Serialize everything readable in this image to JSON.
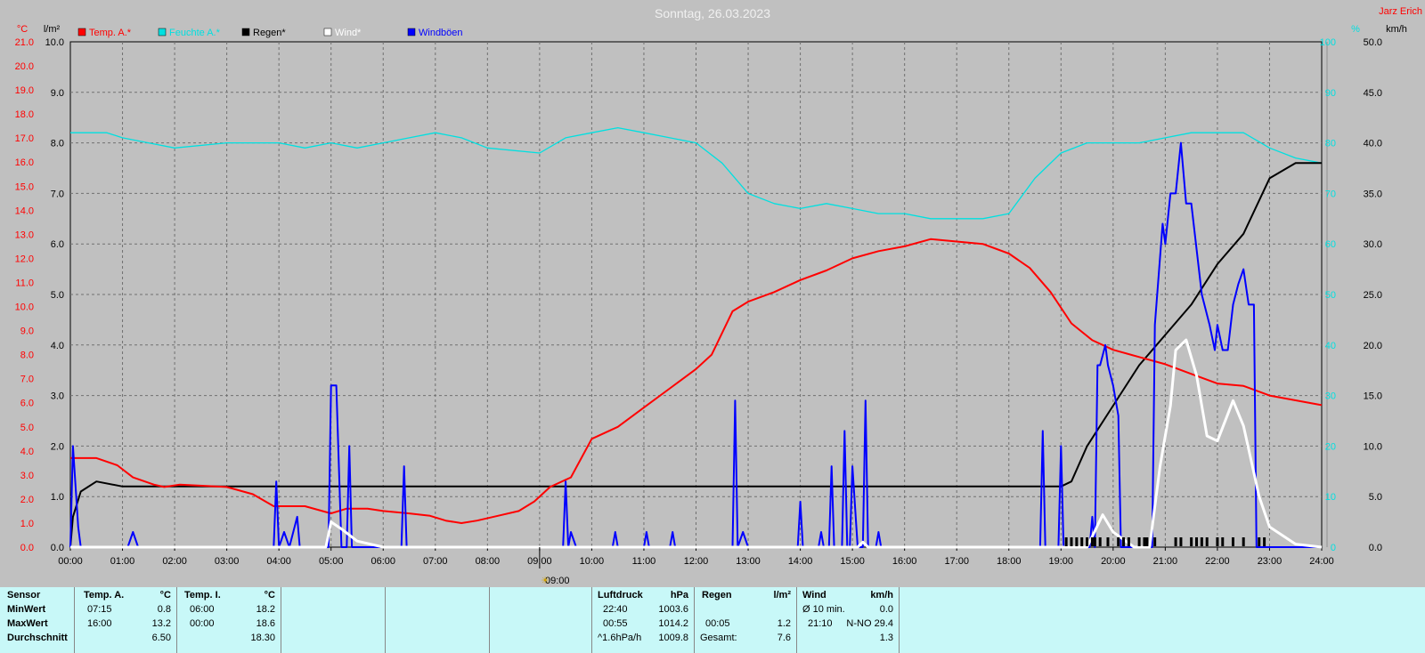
{
  "page": {
    "title": "Sonntag, 26.03.2023",
    "author": "Jarz Erich"
  },
  "axes": {
    "left_temp_unit": "°C",
    "left_rain_unit": "l/m²",
    "right_hum_unit": "%",
    "right_wind_unit": "km/h",
    "x_marker_label": "09:00"
  },
  "colors": {
    "background": "#c0c0c0",
    "temp": "#ff0000",
    "humidity": "#00e0e0",
    "rain": "#000000",
    "wind": "#ffffff",
    "gusts": "#0000ff",
    "table_bg": "#c8f8f8"
  },
  "legend": [
    {
      "label": "Temp. A.*",
      "color": "#ff0000"
    },
    {
      "label": "Feuchte A.*",
      "color": "#00e0e0"
    },
    {
      "label": "Regen*",
      "color": "#000000"
    },
    {
      "label": "Wind*",
      "color": "#ffffff"
    },
    {
      "label": "Windböen",
      "color": "#0000ff"
    }
  ],
  "chart_data": {
    "type": "line",
    "title": "Sonntag, 26.03.2023",
    "x_ticks": [
      "00:00",
      "01:00",
      "02:00",
      "03:00",
      "04:00",
      "05:00",
      "06:00",
      "07:00",
      "08:00",
      "09:00",
      "10:00",
      "11:00",
      "12:00",
      "13:00",
      "14:00",
      "15:00",
      "16:00",
      "17:00",
      "18:00",
      "19:00",
      "20:00",
      "21:00",
      "22:00",
      "23:00",
      "24:00"
    ],
    "x_range_hours": [
      0,
      24
    ],
    "temp_axis": {
      "unit": "°C",
      "range": [
        0,
        21
      ],
      "ticks": [
        "0.0",
        "1.0",
        "2.0",
        "3.0",
        "4.0",
        "5.0",
        "6.0",
        "7.0",
        "8.0",
        "9.0",
        "10.0",
        "11.0",
        "12.0",
        "13.0",
        "14.0",
        "15.0",
        "16.0",
        "17.0",
        "18.0",
        "19.0",
        "20.0",
        "21.0"
      ]
    },
    "rain_axis": {
      "unit": "l/m²",
      "range": [
        0,
        10
      ],
      "ticks": [
        "0.0",
        "1.0",
        "2.0",
        "3.0",
        "4.0",
        "5.0",
        "6.0",
        "7.0",
        "8.0",
        "9.0",
        "10.0"
      ]
    },
    "hum_axis": {
      "unit": "%",
      "range": [
        0,
        100
      ],
      "ticks": [
        "0",
        "10",
        "20",
        "30",
        "40",
        "50",
        "60",
        "70",
        "80",
        "90",
        "100"
      ]
    },
    "wind_axis": {
      "unit": "km/h",
      "range": [
        0,
        50
      ],
      "ticks": [
        "0.0",
        "5.0",
        "10.0",
        "15.0",
        "20.0",
        "25.0",
        "30.0",
        "35.0",
        "40.0",
        "45.0",
        "50.0"
      ]
    },
    "grid": true,
    "series": [
      {
        "name": "Temp. A.*",
        "axis": "temp",
        "points": [
          [
            0,
            3.7
          ],
          [
            0.5,
            3.7
          ],
          [
            0.9,
            3.4
          ],
          [
            1.2,
            2.9
          ],
          [
            1.6,
            2.6
          ],
          [
            1.8,
            2.5
          ],
          [
            2.1,
            2.6
          ],
          [
            3.0,
            2.5
          ],
          [
            3.5,
            2.2
          ],
          [
            3.9,
            1.7
          ],
          [
            4.5,
            1.7
          ],
          [
            5.0,
            1.4
          ],
          [
            5.3,
            1.6
          ],
          [
            5.7,
            1.6
          ],
          [
            6.0,
            1.5
          ],
          [
            6.5,
            1.4
          ],
          [
            6.9,
            1.3
          ],
          [
            7.2,
            1.1
          ],
          [
            7.5,
            1.0
          ],
          [
            7.8,
            1.1
          ],
          [
            8.2,
            1.3
          ],
          [
            8.6,
            1.5
          ],
          [
            8.9,
            1.9
          ],
          [
            9.2,
            2.5
          ],
          [
            9.6,
            2.9
          ],
          [
            10.0,
            4.5
          ],
          [
            10.5,
            5.0
          ],
          [
            11.0,
            5.8
          ],
          [
            11.5,
            6.6
          ],
          [
            12.0,
            7.4
          ],
          [
            12.3,
            8.0
          ],
          [
            12.7,
            9.8
          ],
          [
            13.0,
            10.2
          ],
          [
            13.5,
            10.6
          ],
          [
            14.0,
            11.1
          ],
          [
            14.5,
            11.5
          ],
          [
            15.0,
            12.0
          ],
          [
            15.5,
            12.3
          ],
          [
            16.0,
            12.5
          ],
          [
            16.5,
            12.8
          ],
          [
            17.0,
            12.7
          ],
          [
            17.5,
            12.6
          ],
          [
            18.0,
            12.2
          ],
          [
            18.4,
            11.6
          ],
          [
            18.8,
            10.6
          ],
          [
            19.2,
            9.3
          ],
          [
            19.6,
            8.6
          ],
          [
            20.0,
            8.2
          ],
          [
            20.5,
            7.9
          ],
          [
            21.0,
            7.6
          ],
          [
            21.5,
            7.2
          ],
          [
            22.0,
            6.8
          ],
          [
            22.5,
            6.7
          ],
          [
            23.0,
            6.3
          ],
          [
            23.5,
            6.1
          ],
          [
            24.0,
            5.9
          ]
        ]
      },
      {
        "name": "Feuchte A.*",
        "axis": "hum",
        "points": [
          [
            0,
            82
          ],
          [
            0.7,
            82
          ],
          [
            1.0,
            81
          ],
          [
            1.5,
            80
          ],
          [
            2.0,
            79
          ],
          [
            3.0,
            80
          ],
          [
            4.0,
            80
          ],
          [
            4.5,
            79
          ],
          [
            5.0,
            80
          ],
          [
            5.5,
            79
          ],
          [
            6.0,
            80
          ],
          [
            6.5,
            81
          ],
          [
            7.0,
            82
          ],
          [
            7.5,
            81
          ],
          [
            8.0,
            79
          ],
          [
            9.0,
            78
          ],
          [
            9.5,
            81
          ],
          [
            10.0,
            82
          ],
          [
            10.5,
            83
          ],
          [
            11.0,
            82
          ],
          [
            12.0,
            80
          ],
          [
            12.5,
            76
          ],
          [
            13.0,
            70
          ],
          [
            13.5,
            68
          ],
          [
            14.0,
            67
          ],
          [
            14.5,
            68
          ],
          [
            15.0,
            67
          ],
          [
            15.5,
            66
          ],
          [
            16.0,
            66
          ],
          [
            16.5,
            65
          ],
          [
            17.0,
            65
          ],
          [
            17.5,
            65
          ],
          [
            18.0,
            66
          ],
          [
            18.5,
            73
          ],
          [
            19.0,
            78
          ],
          [
            19.5,
            80
          ],
          [
            20.0,
            80
          ],
          [
            20.5,
            80
          ],
          [
            21.0,
            81
          ],
          [
            21.5,
            82
          ],
          [
            22.0,
            82
          ],
          [
            22.5,
            82
          ],
          [
            23.0,
            79
          ],
          [
            23.5,
            77
          ],
          [
            24.0,
            76
          ]
        ]
      },
      {
        "name": "Regen*",
        "axis": "rain",
        "points": [
          [
            0,
            0
          ],
          [
            0.05,
            0.6
          ],
          [
            0.2,
            1.1
          ],
          [
            0.5,
            1.3
          ],
          [
            1.0,
            1.2
          ],
          [
            1.5,
            1.2
          ],
          [
            3.0,
            1.2
          ],
          [
            9.0,
            1.2
          ],
          [
            15.0,
            1.2
          ],
          [
            19.0,
            1.2
          ],
          [
            19.2,
            1.3
          ],
          [
            19.5,
            2.0
          ],
          [
            20.0,
            2.8
          ],
          [
            20.5,
            3.6
          ],
          [
            21.0,
            4.2
          ],
          [
            21.5,
            4.8
          ],
          [
            22.0,
            5.6
          ],
          [
            22.5,
            6.2
          ],
          [
            23.0,
            7.3
          ],
          [
            23.5,
            7.6
          ],
          [
            24.0,
            7.6
          ]
        ]
      },
      {
        "name": "Wind*",
        "axis": "wind",
        "points": [
          [
            0,
            0
          ],
          [
            4.9,
            0
          ],
          [
            5.0,
            2.5
          ],
          [
            5.2,
            1.8
          ],
          [
            5.5,
            0.6
          ],
          [
            6.0,
            0
          ],
          [
            15.1,
            0
          ],
          [
            15.2,
            0.5
          ],
          [
            15.3,
            0
          ],
          [
            19.5,
            0
          ],
          [
            19.8,
            3.2
          ],
          [
            20.0,
            1.5
          ],
          [
            20.4,
            0
          ],
          [
            20.7,
            0
          ],
          [
            20.9,
            8.0
          ],
          [
            21.1,
            14.0
          ],
          [
            21.2,
            19.5
          ],
          [
            21.4,
            20.5
          ],
          [
            21.6,
            17.0
          ],
          [
            21.8,
            11.0
          ],
          [
            22.0,
            10.5
          ],
          [
            22.3,
            14.5
          ],
          [
            22.5,
            12.0
          ],
          [
            22.8,
            5.0
          ],
          [
            23.0,
            2.0
          ],
          [
            23.5,
            0.3
          ],
          [
            24.0,
            0
          ]
        ]
      },
      {
        "name": "Windböen",
        "axis": "wind",
        "points": [
          [
            0,
            0
          ],
          [
            0.05,
            10
          ],
          [
            0.15,
            2
          ],
          [
            0.2,
            0
          ],
          [
            1.1,
            0
          ],
          [
            1.2,
            1.5
          ],
          [
            1.3,
            0
          ],
          [
            3.9,
            0
          ],
          [
            3.95,
            6.5
          ],
          [
            4.0,
            0
          ],
          [
            4.1,
            1.5
          ],
          [
            4.2,
            0
          ],
          [
            4.35,
            3.0
          ],
          [
            4.4,
            0
          ],
          [
            4.95,
            0
          ],
          [
            5.0,
            16
          ],
          [
            5.1,
            16
          ],
          [
            5.2,
            0
          ],
          [
            5.3,
            0
          ],
          [
            5.35,
            10
          ],
          [
            5.4,
            0
          ],
          [
            6.35,
            0
          ],
          [
            6.4,
            8
          ],
          [
            6.45,
            0
          ],
          [
            9.45,
            0
          ],
          [
            9.5,
            6.5
          ],
          [
            9.55,
            0
          ],
          [
            9.6,
            1.5
          ],
          [
            9.7,
            0
          ],
          [
            10.4,
            0
          ],
          [
            10.45,
            1.5
          ],
          [
            10.5,
            0
          ],
          [
            11.0,
            0
          ],
          [
            11.05,
            1.5
          ],
          [
            11.1,
            0
          ],
          [
            11.5,
            0
          ],
          [
            11.55,
            1.5
          ],
          [
            11.6,
            0
          ],
          [
            12.7,
            0
          ],
          [
            12.75,
            14.5
          ],
          [
            12.8,
            0
          ],
          [
            12.9,
            1.5
          ],
          [
            13.0,
            0
          ],
          [
            13.95,
            0
          ],
          [
            14.0,
            4.5
          ],
          [
            14.05,
            0
          ],
          [
            14.35,
            0
          ],
          [
            14.4,
            1.5
          ],
          [
            14.45,
            0
          ],
          [
            14.55,
            0
          ],
          [
            14.6,
            8
          ],
          [
            14.65,
            0
          ],
          [
            14.8,
            0
          ],
          [
            14.85,
            11.5
          ],
          [
            14.9,
            0
          ],
          [
            14.95,
            0
          ],
          [
            15.0,
            8
          ],
          [
            15.1,
            0
          ],
          [
            15.2,
            0
          ],
          [
            15.25,
            14.5
          ],
          [
            15.3,
            0
          ],
          [
            15.45,
            0
          ],
          [
            15.5,
            1.5
          ],
          [
            15.55,
            0
          ],
          [
            18.6,
            0
          ],
          [
            18.65,
            11.5
          ],
          [
            18.7,
            0
          ],
          [
            18.95,
            0
          ],
          [
            19.0,
            10
          ],
          [
            19.05,
            0
          ],
          [
            19.55,
            0
          ],
          [
            19.6,
            3.0
          ],
          [
            19.65,
            0
          ],
          [
            19.7,
            18
          ],
          [
            19.75,
            18
          ],
          [
            19.85,
            20
          ],
          [
            19.9,
            18
          ],
          [
            20.0,
            16
          ],
          [
            20.1,
            13
          ],
          [
            20.15,
            0
          ],
          [
            20.75,
            0
          ],
          [
            20.8,
            22
          ],
          [
            20.95,
            32
          ],
          [
            21.0,
            30
          ],
          [
            21.1,
            35
          ],
          [
            21.2,
            35
          ],
          [
            21.3,
            40
          ],
          [
            21.4,
            34
          ],
          [
            21.5,
            34
          ],
          [
            21.7,
            25
          ],
          [
            21.85,
            22
          ],
          [
            21.95,
            19.5
          ],
          [
            22.0,
            22
          ],
          [
            22.1,
            19.5
          ],
          [
            22.2,
            19.5
          ],
          [
            22.3,
            24
          ],
          [
            22.4,
            26
          ],
          [
            22.5,
            27.5
          ],
          [
            22.6,
            24
          ],
          [
            22.7,
            24
          ],
          [
            22.75,
            0
          ],
          [
            24.0,
            0
          ]
        ]
      }
    ],
    "rain_ticks_hours": [
      19.1,
      19.2,
      19.3,
      19.4,
      19.5,
      19.6,
      19.65,
      19.75,
      19.9,
      20.1,
      20.2,
      20.3,
      20.5,
      20.6,
      20.65,
      20.8,
      21.2,
      21.3,
      21.5,
      21.6,
      21.7,
      21.8,
      22.0,
      22.1,
      22.3,
      22.5,
      22.8,
      22.9
    ]
  },
  "table": {
    "temp_a": {
      "sensor_label": "Sensor",
      "header": "Temp. A.",
      "unit": "°C",
      "rows": [
        {
          "label": "MinWert",
          "time": "07:15",
          "value": "0.8"
        },
        {
          "label": "MaxWert",
          "time": "16:00",
          "value": "13.2"
        },
        {
          "label": "Durchschnitt",
          "time": "",
          "value": "6.50"
        }
      ]
    },
    "temp_i": {
      "header": "Temp. I.",
      "unit": "°C",
      "rows": [
        {
          "time": "06:00",
          "value": "18.2"
        },
        {
          "time": "00:00",
          "value": "18.6"
        },
        {
          "time": "",
          "value": "18.30"
        }
      ]
    },
    "luftdruck": {
      "header": "Luftdruck",
      "unit": "hPa",
      "rows": [
        {
          "time": "22:40",
          "value": "1003.6"
        },
        {
          "time": "00:55",
          "value": "1014.2"
        },
        {
          "time": "^1.6hPa/h",
          "value": "1009.8"
        }
      ]
    },
    "regen": {
      "header": "Regen",
      "unit": "l/m²",
      "rows": [
        {
          "time": "",
          "value": ""
        },
        {
          "time": "00:05",
          "value": "1.2"
        },
        {
          "time": "Gesamt:",
          "value": "7.6"
        }
      ]
    },
    "wind": {
      "header": "Wind",
      "unit": "km/h",
      "rows": [
        {
          "time": "Ø 10 min.",
          "value": "0.0"
        },
        {
          "time": "21:10",
          "value": "N-NO 29.4"
        },
        {
          "time": "",
          "value": "1.3"
        }
      ]
    }
  }
}
